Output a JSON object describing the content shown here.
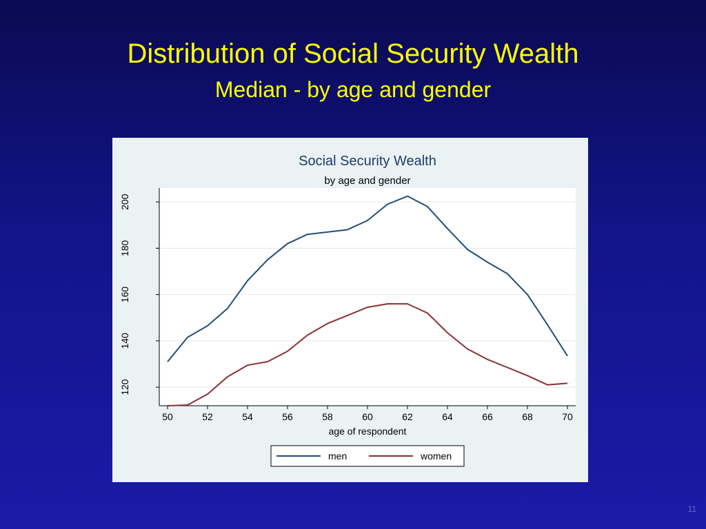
{
  "slide": {
    "title": "Distribution of Social Security Wealth",
    "subtitle": "Median - by age and gender",
    "page_number": "11"
  },
  "colors": {
    "background": "#12148a",
    "title": "#ffff00",
    "panel": "#eaf2f3",
    "men": "#1f4e79",
    "women": "#8b2f2f"
  },
  "chart_data": {
    "type": "line",
    "title": "Social Security Wealth",
    "subtitle": "by age and gender",
    "xlabel": "age of respondent",
    "ylabel": "",
    "x": [
      50,
      51,
      52,
      53,
      54,
      55,
      56,
      57,
      58,
      59,
      60,
      61,
      62,
      63,
      64,
      65,
      66,
      67,
      68,
      69,
      70
    ],
    "xlim": [
      50,
      70
    ],
    "ylim": [
      112,
      206
    ],
    "xticks": [
      "50",
      "52",
      "54",
      "56",
      "58",
      "60",
      "62",
      "64",
      "66",
      "68",
      "70"
    ],
    "yticks": [
      "120",
      "140",
      "160",
      "180",
      "200"
    ],
    "grid": true,
    "legend_position": "bottom",
    "series": [
      {
        "name": "men",
        "color": "#1f4e79",
        "values": [
          131,
          141.5,
          146.5,
          154,
          166,
          175,
          182,
          186,
          187,
          188,
          192,
          199,
          202.5,
          198,
          188.5,
          179.5,
          174,
          169,
          160,
          147,
          133.5
        ]
      },
      {
        "name": "women",
        "color": "#8b2f2f",
        "values": [
          112,
          112.3,
          117,
          124.5,
          129.5,
          131,
          135.5,
          142.5,
          147.5,
          151,
          154.5,
          156,
          156,
          152,
          143.5,
          136.5,
          132,
          128.5,
          125,
          121,
          121.7
        ]
      }
    ]
  }
}
